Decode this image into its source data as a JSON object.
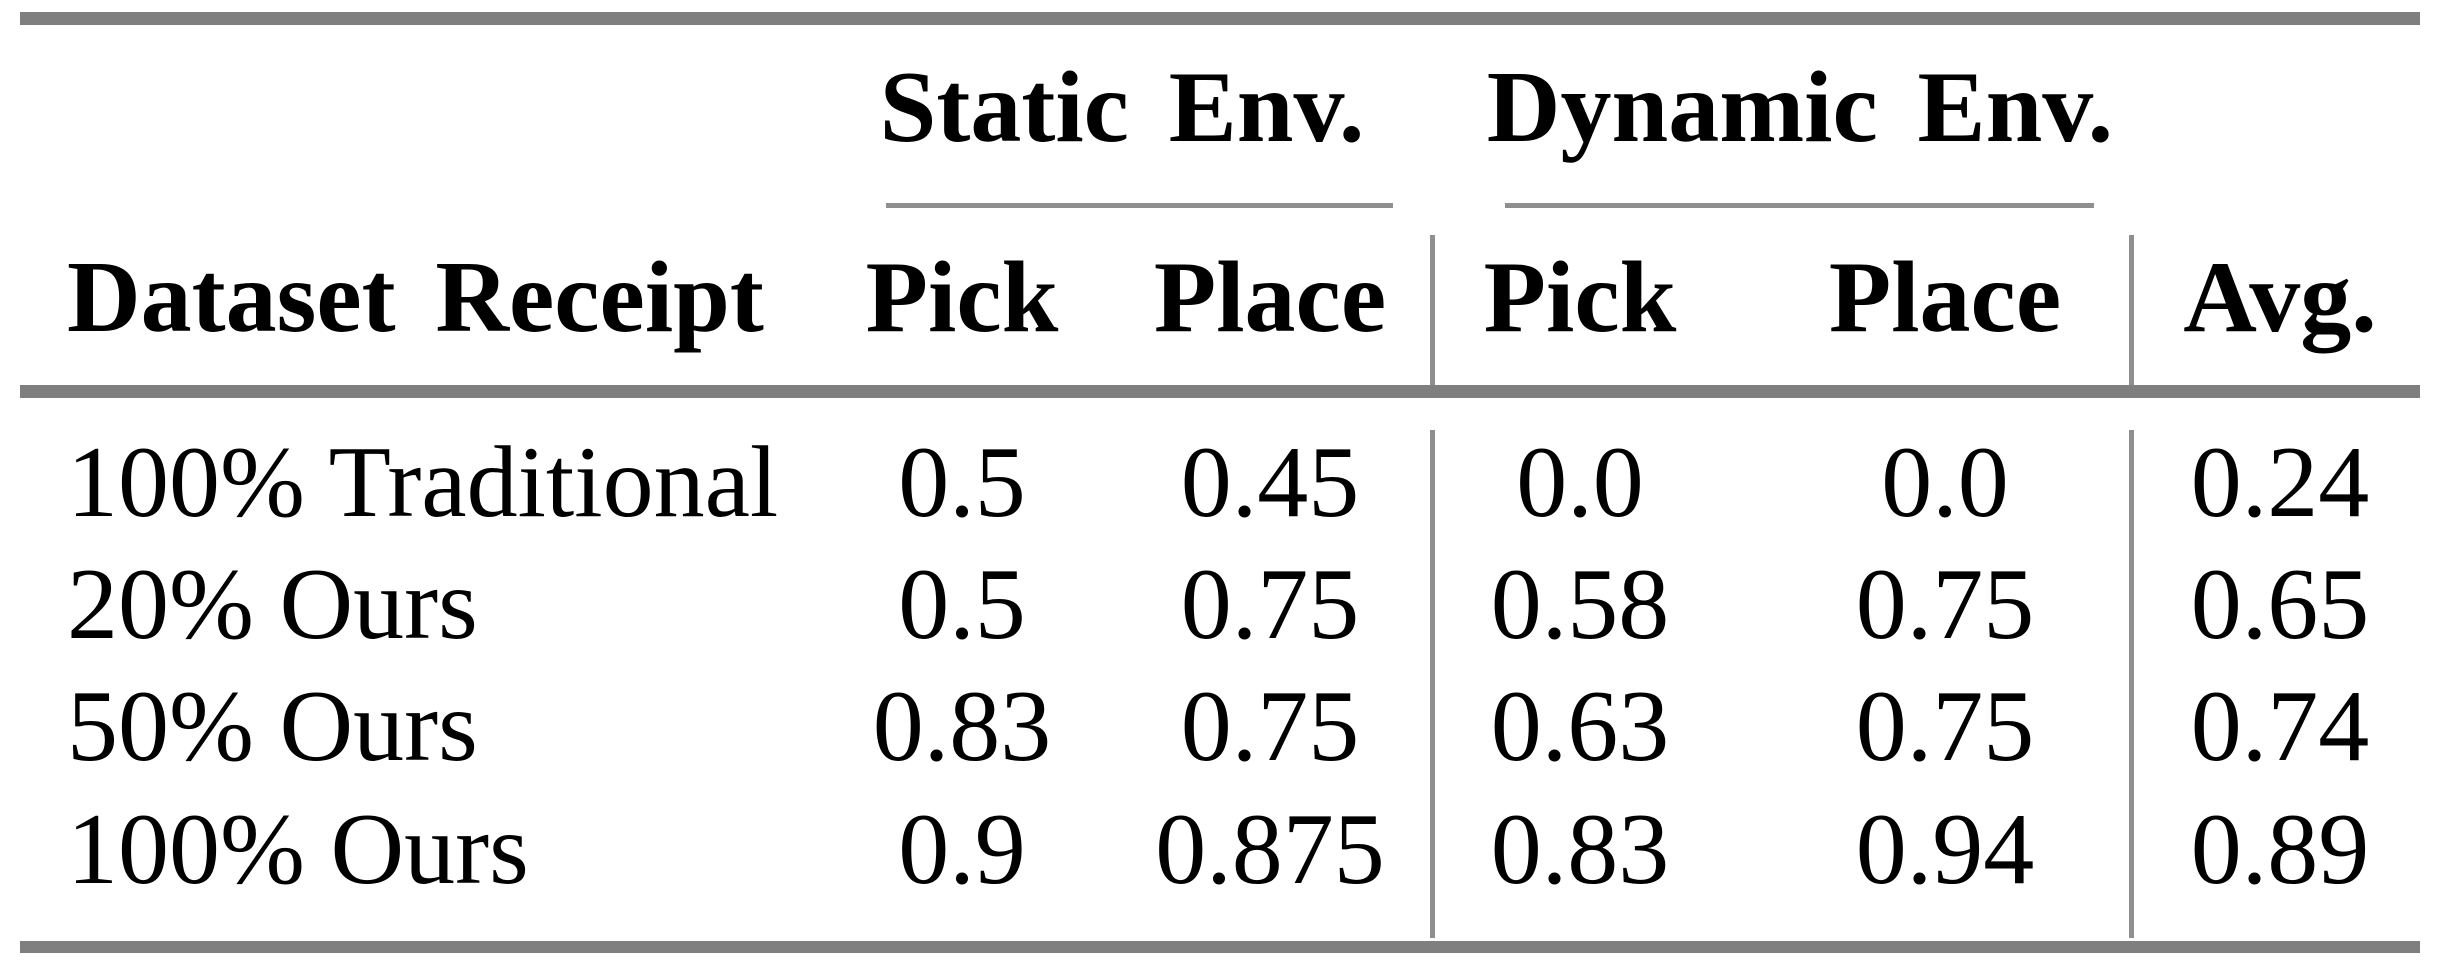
{
  "table": {
    "group_headers": {
      "static": "Static Env.",
      "dynamic": "Dynamic Env."
    },
    "column_headers": {
      "dataset": "Dataset Receipt",
      "static_pick": "Pick",
      "static_place": "Place",
      "dynamic_pick": "Pick",
      "dynamic_place": "Place",
      "avg": "Avg."
    },
    "rows": [
      {
        "dataset": "100% Traditional",
        "static_pick": "0.5",
        "static_place": "0.45",
        "dynamic_pick": "0.0",
        "dynamic_place": "0.0",
        "avg": "0.24"
      },
      {
        "dataset": "20% Ours",
        "static_pick": "0.5",
        "static_place": "0.75",
        "dynamic_pick": "0.58",
        "dynamic_place": "0.75",
        "avg": "0.65"
      },
      {
        "dataset": "50% Ours",
        "static_pick": "0.83",
        "static_place": "0.75",
        "dynamic_pick": "0.63",
        "dynamic_place": "0.75",
        "avg": "0.74"
      },
      {
        "dataset": "100% Ours",
        "static_pick": "0.9",
        "static_place": "0.875",
        "dynamic_pick": "0.83",
        "dynamic_place": "0.94",
        "avg": "0.89"
      }
    ],
    "colors": {
      "thick_rule": "#7f7f7f",
      "thin_rule": "#8f8f8f",
      "text": "#000000",
      "background": "#ffffff"
    }
  },
  "chart_data": {
    "type": "table",
    "columns": [
      "Dataset Receipt",
      "Static Env. Pick",
      "Static Env. Place",
      "Dynamic Env. Pick",
      "Dynamic Env. Place",
      "Avg."
    ],
    "rows": [
      [
        "100% Traditional",
        0.5,
        0.45,
        0.0,
        0.0,
        0.24
      ],
      [
        "20% Ours",
        0.5,
        0.75,
        0.58,
        0.75,
        0.65
      ],
      [
        "50% Ours",
        0.83,
        0.75,
        0.63,
        0.75,
        0.74
      ],
      [
        "100% Ours",
        0.9,
        0.875,
        0.83,
        0.94,
        0.89
      ]
    ]
  }
}
